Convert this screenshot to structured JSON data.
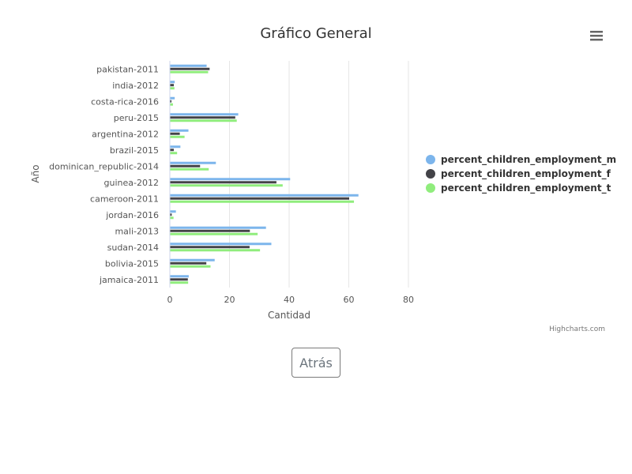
{
  "colors": {
    "m": "#7cb5ec",
    "f": "#434348",
    "t": "#90ed7d",
    "grid": "#e6e6e6"
  },
  "back_button_label": "Atrás",
  "chart_data": {
    "type": "bar",
    "orientation": "horizontal",
    "title": "Gráfico General",
    "xlabel": "Año",
    "ylabel": "Cantidad",
    "credits": "Highcharts.com",
    "menu_icon": "hamburger-menu-icon",
    "value_axis_ticks": [
      0,
      20,
      40,
      60,
      80
    ],
    "ylim": [
      0,
      80
    ],
    "grid": true,
    "legend_position": "right",
    "categories": [
      "pakistan-2011",
      "india-2012",
      "costa-rica-2016",
      "peru-2015",
      "argentina-2012",
      "brazil-2015",
      "dominican_republic-2014",
      "guinea-2012",
      "cameroon-2011",
      "jordan-2016",
      "mali-2013",
      "sudan-2014",
      "bolivia-2015",
      "jamaica-2011"
    ],
    "series": [
      {
        "name": "percent_children_employment_m",
        "color": "#7cb5ec",
        "values": [
          12.2,
          1.5,
          1.5,
          22.8,
          6.1,
          3.4,
          15.3,
          40.2,
          63.1,
          1.9,
          32.1,
          33.9,
          14.9,
          6.2
        ]
      },
      {
        "name": "percent_children_employment_f",
        "color": "#434348",
        "values": [
          13.2,
          1.2,
          0.4,
          21.8,
          3.2,
          1.2,
          10.0,
          35.6,
          60.0,
          0.5,
          26.7,
          26.6,
          12.1,
          5.9
        ]
      },
      {
        "name": "percent_children_employment_t",
        "color": "#90ed7d",
        "values": [
          12.7,
          1.4,
          0.9,
          22.3,
          4.8,
          2.3,
          12.9,
          37.7,
          61.6,
          1.1,
          29.3,
          30.1,
          13.5,
          6.0
        ]
      }
    ]
  }
}
